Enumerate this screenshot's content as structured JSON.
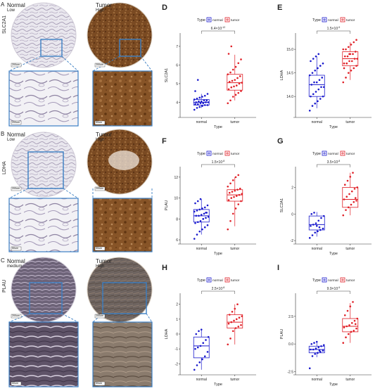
{
  "ihc_rows": [
    {
      "letter": "A",
      "gene": "SLC2A1",
      "normal": {
        "group": "Normal",
        "level": "Low",
        "zoom_scale": "200um"
      },
      "tumor": {
        "group": "Tumor",
        "level": "High",
        "zoom_scale": "50um"
      }
    },
    {
      "letter": "B",
      "gene": "LDHA",
      "normal": {
        "group": "Normal",
        "level": "Low",
        "zoom_scale": "50um"
      },
      "tumor": {
        "group": "Tumor",
        "level": "High",
        "zoom_scale": "50um"
      }
    },
    {
      "letter": "C",
      "gene": "PLAU",
      "normal": {
        "group": "Normal",
        "level": "medium",
        "zoom_scale": "50um"
      },
      "tumor": {
        "group": "Tumor",
        "level": "High",
        "zoom_scale": "50um"
      }
    }
  ],
  "colors": {
    "normal": "#1a1acd",
    "tumor": "#e01f26",
    "stain_brown": "#8a5a2e",
    "zoom_box": "#3b7fc4"
  },
  "chart_data": [
    {
      "panel": "D",
      "type": "scatter",
      "title": "",
      "xlabel": "Type",
      "ylabel": "SLC2A1",
      "categories": [
        "normal",
        "tumor"
      ],
      "ylim": [
        3.3,
        7.6
      ],
      "yticks": [
        4,
        5,
        6,
        7
      ],
      "legend_title": "Type",
      "legend": [
        "normal",
        "tumor"
      ],
      "pvalue": "6.4x10^-12",
      "box": {
        "normal": [
          3.7,
          3.85,
          4.0,
          4.15,
          4.45
        ],
        "tumor": [
          4.1,
          4.65,
          5.05,
          5.5,
          6.55
        ]
      },
      "series": [
        {
          "name": "normal",
          "values": [
            3.6,
            3.7,
            3.75,
            3.8,
            3.85,
            3.85,
            3.9,
            3.9,
            3.95,
            3.95,
            4.0,
            4.0,
            4.0,
            4.05,
            4.05,
            4.1,
            4.1,
            4.15,
            4.2,
            4.25,
            4.3,
            4.35,
            4.45,
            4.6,
            5.2
          ]
        },
        {
          "name": "tumor",
          "values": [
            3.95,
            4.1,
            4.3,
            4.4,
            4.5,
            4.6,
            4.7,
            4.8,
            4.85,
            4.9,
            5.0,
            5.05,
            5.1,
            5.15,
            5.2,
            5.3,
            5.4,
            5.5,
            5.6,
            5.75,
            5.9,
            6.1,
            6.3,
            6.6,
            7.0
          ]
        }
      ]
    },
    {
      "panel": "E",
      "type": "scatter",
      "title": "",
      "xlabel": "Type",
      "ylabel": "LDHA",
      "categories": [
        "normal",
        "tumor"
      ],
      "ylim": [
        13.6,
        15.3
      ],
      "yticks": [
        14.0,
        14.5,
        15.0
      ],
      "legend_title": "Type",
      "legend": [
        "normal",
        "tumor"
      ],
      "pvalue": "1.5x10^-9",
      "box": {
        "normal": [
          13.75,
          14.0,
          14.25,
          14.45,
          14.85
        ],
        "tumor": [
          14.35,
          14.65,
          14.8,
          14.95,
          15.15
        ]
      },
      "series": [
        {
          "name": "normal",
          "values": [
            13.7,
            13.8,
            13.85,
            13.9,
            13.95,
            14.0,
            14.0,
            14.05,
            14.1,
            14.15,
            14.2,
            14.2,
            14.25,
            14.3,
            14.3,
            14.35,
            14.4,
            14.45,
            14.5,
            14.55,
            14.6,
            14.65,
            14.7,
            14.75,
            14.8,
            14.85,
            14.9
          ]
        },
        {
          "name": "tumor",
          "values": [
            14.3,
            14.4,
            14.5,
            14.55,
            14.6,
            14.65,
            14.7,
            14.7,
            14.75,
            14.75,
            14.8,
            14.8,
            14.85,
            14.85,
            14.9,
            14.9,
            14.95,
            15.0,
            15.0,
            15.05,
            15.1,
            15.15,
            15.2,
            14.6,
            14.7,
            14.9
          ]
        }
      ]
    },
    {
      "panel": "F",
      "type": "scatter",
      "title": "",
      "xlabel": "Type",
      "ylabel": "PLAU",
      "categories": [
        "normal",
        "tumor"
      ],
      "ylim": [
        5.8,
        12.8
      ],
      "yticks": [
        6,
        8,
        10,
        12
      ],
      "legend_title": "Type",
      "legend": [
        "normal",
        "tumor"
      ],
      "pvalue": "1.5x10^-8",
      "box": {
        "normal": [
          6.5,
          7.7,
          8.3,
          8.9,
          9.9
        ],
        "tumor": [
          7.3,
          9.7,
          10.3,
          10.8,
          12.0
        ]
      },
      "series": [
        {
          "name": "normal",
          "values": [
            6.1,
            6.5,
            6.8,
            7.0,
            7.2,
            7.4,
            7.6,
            7.7,
            7.8,
            8.0,
            8.1,
            8.2,
            8.3,
            8.3,
            8.4,
            8.5,
            8.6,
            8.7,
            8.8,
            8.9,
            9.0,
            9.1,
            9.3,
            9.5,
            9.7,
            9.9,
            8.0,
            8.6
          ]
        },
        {
          "name": "tumor",
          "values": [
            7.0,
            7.8,
            8.5,
            9.0,
            9.4,
            9.7,
            9.8,
            10.0,
            10.1,
            10.2,
            10.3,
            10.4,
            10.5,
            10.6,
            10.7,
            10.8,
            10.9,
            11.1,
            11.4,
            11.7,
            12.0,
            12.2
          ]
        }
      ]
    },
    {
      "panel": "G",
      "type": "scatter",
      "title": "",
      "xlabel": "Type",
      "ylabel": "SLC2A1",
      "categories": [
        "normal",
        "tumor"
      ],
      "ylim": [
        -2.1,
        3.4
      ],
      "yticks": [
        -2,
        0,
        2
      ],
      "legend_title": "Type",
      "legend": [
        "normal",
        "tumor"
      ],
      "pvalue": "3.5x10^-8",
      "box": {
        "normal": [
          -1.7,
          -1.2,
          -0.8,
          -0.15,
          0.15
        ],
        "tumor": [
          -0.1,
          0.5,
          1.1,
          2.0,
          3.1
        ]
      },
      "series": [
        {
          "name": "normal",
          "values": [
            -1.8,
            -1.6,
            -1.4,
            -1.3,
            -1.2,
            -1.1,
            -0.9,
            -0.8,
            -0.7,
            -0.5,
            -0.3,
            -0.15,
            0.0,
            0.1,
            -0.9,
            -1.0
          ]
        },
        {
          "name": "tumor",
          "values": [
            -0.1,
            0.3,
            0.5,
            0.7,
            0.9,
            1.0,
            1.1,
            1.3,
            1.5,
            1.7,
            1.9,
            2.0,
            2.2,
            2.5,
            2.8,
            3.1,
            1.2
          ]
        }
      ]
    },
    {
      "panel": "H",
      "type": "scatter",
      "title": "",
      "xlabel": "Type",
      "ylabel": "LDHA",
      "categories": [
        "normal",
        "tumor"
      ],
      "ylim": [
        -2.6,
        2.6
      ],
      "yticks": [
        -2,
        -1,
        0,
        1,
        2
      ],
      "legend_title": "Type",
      "legend": [
        "normal",
        "tumor"
      ],
      "pvalue": "2.5x10^-8",
      "box": {
        "normal": [
          -2.4,
          -1.6,
          -0.8,
          -0.2,
          0.3
        ],
        "tumor": [
          -0.7,
          0.4,
          0.8,
          1.3,
          2.0
        ]
      },
      "series": [
        {
          "name": "normal",
          "values": [
            -2.4,
            -2.1,
            -1.9,
            -1.7,
            -1.5,
            -1.2,
            -1.0,
            -0.9,
            -0.8,
            -0.6,
            -0.4,
            -0.2,
            0.0,
            0.2,
            0.3
          ]
        },
        {
          "name": "tumor",
          "values": [
            -0.7,
            -0.3,
            0.2,
            0.4,
            0.5,
            0.6,
            0.7,
            0.8,
            0.9,
            1.0,
            1.1,
            1.2,
            1.3,
            1.5,
            1.7,
            2.0
          ]
        }
      ]
    },
    {
      "panel": "I",
      "type": "scatter",
      "title": "",
      "xlabel": "Type",
      "ylabel": "PLAU",
      "categories": [
        "normal",
        "tumor"
      ],
      "ylim": [
        -2.6,
        4.4
      ],
      "yticks": [
        -2.5,
        0.0,
        2.5
      ],
      "legend_title": "Type",
      "legend": [
        "normal",
        "tumor"
      ],
      "pvalue": "9.9x10^-9",
      "box": {
        "normal": [
          -1.2,
          -0.8,
          -0.5,
          -0.2,
          0.2
        ],
        "tumor": [
          0.1,
          1.1,
          1.6,
          2.3,
          3.7
        ]
      },
      "series": [
        {
          "name": "normal",
          "values": [
            -2.2,
            -1.1,
            -0.9,
            -0.8,
            -0.7,
            -0.6,
            -0.5,
            -0.5,
            -0.4,
            -0.3,
            -0.2,
            -0.1,
            0.0,
            0.1,
            0.2,
            -0.6
          ]
        },
        {
          "name": "tumor",
          "values": [
            0.1,
            0.6,
            0.9,
            1.1,
            1.2,
            1.4,
            1.5,
            1.6,
            1.7,
            1.9,
            2.1,
            2.3,
            2.6,
            3.0,
            3.4,
            3.8,
            1.8
          ]
        }
      ]
    }
  ]
}
